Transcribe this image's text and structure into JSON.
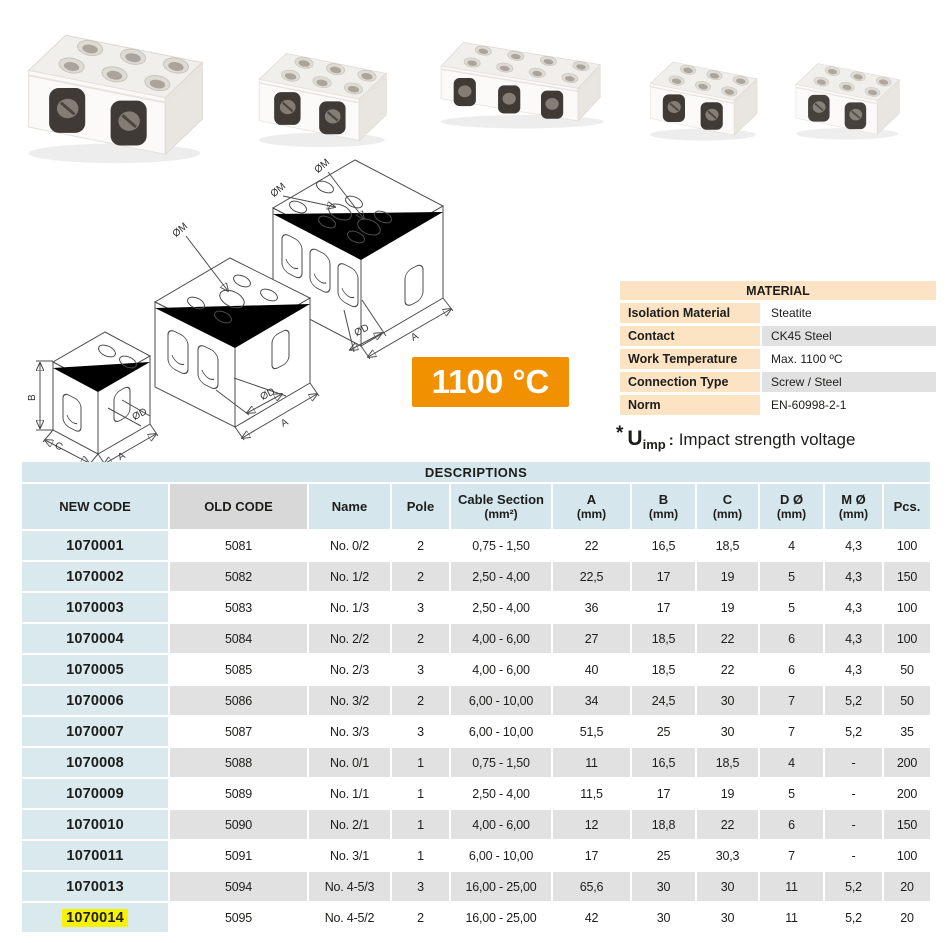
{
  "colors": {
    "accent_orange": "#f29100",
    "highlight_yellow": "#f7f200",
    "table_blue": "#d5e6ec",
    "row_gray": "#e1e1e1",
    "peach": "#fbe3c4"
  },
  "badge": {
    "text": "1100 °C"
  },
  "material_table": {
    "title": "MATERIAL",
    "rows": [
      {
        "label": "Isolation Material",
        "value": "Steatite"
      },
      {
        "label": "Contact",
        "value": "CK45 Steel"
      },
      {
        "label": "Work Temperature",
        "value": "Max. 1100 ºC"
      },
      {
        "label": "Connection Type",
        "value": "Screw / Steel"
      },
      {
        "label": "Norm",
        "value": "EN-60998-2-1"
      }
    ]
  },
  "uimp_note": {
    "star": "*",
    "symbol": "U",
    "subscript": "imp",
    "colon": ":",
    "text": "Impact strength voltage"
  },
  "drawings": {
    "labels": {
      "b": "B",
      "c": "C",
      "a_small": "A",
      "d_small": "ØD",
      "m_mid": "ØM",
      "d_mid": "ØD",
      "a_mid": "A",
      "m_large_top": "ØM",
      "m_large_left": "ØM",
      "d_large": "ØD",
      "a_large": "A"
    }
  },
  "table": {
    "title": "DESCRIPTIONS",
    "columns": [
      {
        "label": "NEW CODE",
        "sub": ""
      },
      {
        "label": "OLD CODE",
        "sub": ""
      },
      {
        "label": "Name",
        "sub": ""
      },
      {
        "label": "Pole",
        "sub": ""
      },
      {
        "label": "Cable Section",
        "sub": "(mm²)"
      },
      {
        "label": "A",
        "sub": "(mm)"
      },
      {
        "label": "B",
        "sub": "(mm)"
      },
      {
        "label": "C",
        "sub": "(mm)"
      },
      {
        "label": "D Ø",
        "sub": "(mm)"
      },
      {
        "label": "M Ø",
        "sub": "(mm)"
      },
      {
        "label": "Pcs.",
        "sub": ""
      }
    ],
    "highlight_row_index": 12,
    "rows": [
      [
        "1070001",
        "5081",
        "No. 0/2",
        "2",
        "0,75 - 1,50",
        "22",
        "16,5",
        "18,5",
        "4",
        "4,3",
        "100"
      ],
      [
        "1070002",
        "5082",
        "No. 1/2",
        "2",
        "2,50 - 4,00",
        "22,5",
        "17",
        "19",
        "5",
        "4,3",
        "150"
      ],
      [
        "1070003",
        "5083",
        "No. 1/3",
        "3",
        "2,50 - 4,00",
        "36",
        "17",
        "19",
        "5",
        "4,3",
        "100"
      ],
      [
        "1070004",
        "5084",
        "No. 2/2",
        "2",
        "4,00 - 6,00",
        "27",
        "18,5",
        "22",
        "6",
        "4,3",
        "100"
      ],
      [
        "1070005",
        "5085",
        "No. 2/3",
        "3",
        "4,00 - 6,00",
        "40",
        "18,5",
        "22",
        "6",
        "4,3",
        "50"
      ],
      [
        "1070006",
        "5086",
        "No. 3/2",
        "2",
        "6,00 - 10,00",
        "34",
        "24,5",
        "30",
        "7",
        "5,2",
        "50"
      ],
      [
        "1070007",
        "5087",
        "No. 3/3",
        "3",
        "6,00 - 10,00",
        "51,5",
        "25",
        "30",
        "7",
        "5,2",
        "35"
      ],
      [
        "1070008",
        "5088",
        "No. 0/1",
        "1",
        "0,75 - 1,50",
        "11",
        "16,5",
        "18,5",
        "4",
        "-",
        "200"
      ],
      [
        "1070009",
        "5089",
        "No. 1/1",
        "1",
        "2,50 - 4,00",
        "11,5",
        "17",
        "19",
        "5",
        "-",
        "200"
      ],
      [
        "1070010",
        "5090",
        "No. 2/1",
        "1",
        "4,00 - 6,00",
        "12",
        "18,8",
        "22",
        "6",
        "-",
        "150"
      ],
      [
        "1070011",
        "5091",
        "No. 3/1",
        "1",
        "6,00 - 10,00",
        "17",
        "25",
        "30,3",
        "7",
        "-",
        "100"
      ],
      [
        "1070013",
        "5094",
        "No. 4-5/3",
        "3",
        "16,00 - 25,00",
        "65,6",
        "30",
        "30",
        "11",
        "5,2",
        "20"
      ],
      [
        "1070014",
        "5095",
        "No. 4-5/2",
        "2",
        "16,00 - 25,00",
        "42",
        "30",
        "30",
        "11",
        "5,2",
        "20"
      ]
    ]
  }
}
